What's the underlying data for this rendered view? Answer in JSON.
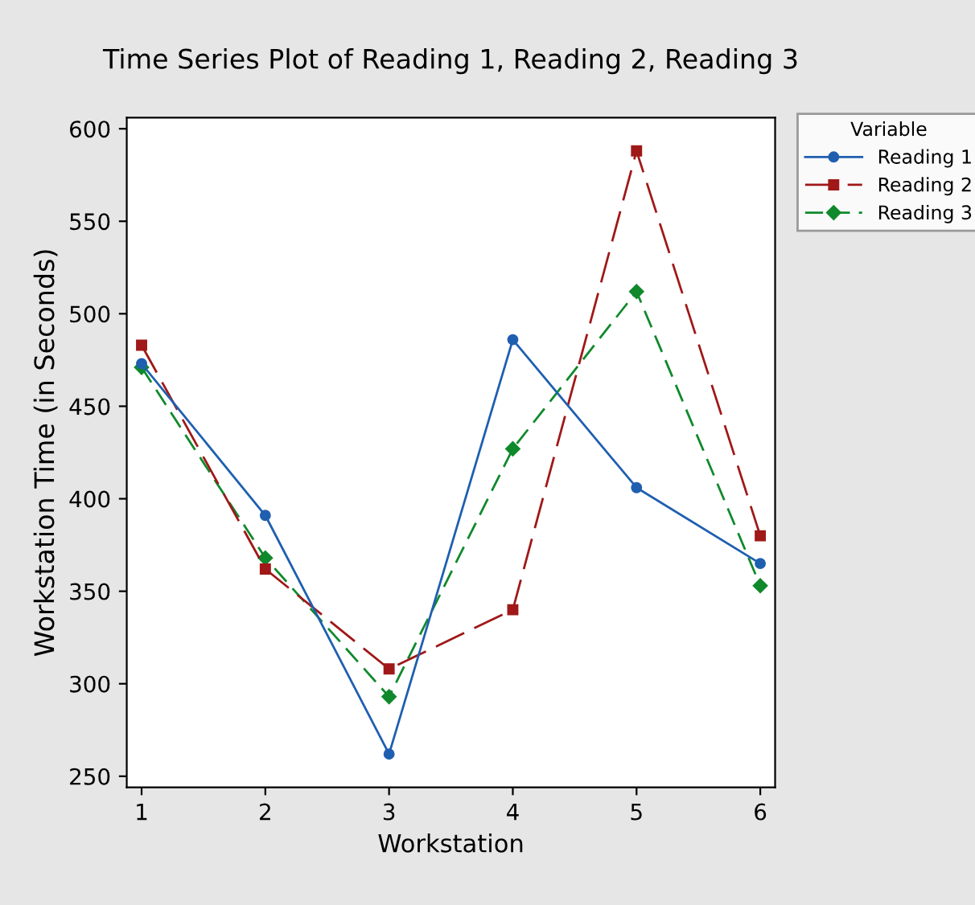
{
  "chart_data": {
    "type": "line",
    "title": "Time Series Plot of Reading 1, Reading 2, Reading 3",
    "xlabel": "Workstation",
    "ylabel": "Workstation Time (in Seconds)",
    "legend_title": "Variable",
    "legend": "top right",
    "x": [
      1,
      2,
      3,
      4,
      5,
      6
    ],
    "xlim": [
      0.88,
      6.12
    ],
    "xticks": [
      1,
      2,
      3,
      4,
      5,
      6
    ],
    "ylim": [
      244,
      606
    ],
    "yticks": [
      250,
      300,
      350,
      400,
      450,
      500,
      550,
      600
    ],
    "grid": false,
    "series": [
      {
        "name": "Reading 1",
        "color": "#1f5fb0",
        "values": [
          473,
          391,
          262,
          486,
          406,
          365
        ],
        "marker": "circle",
        "line_style": "solid"
      },
      {
        "name": "Reading 2",
        "color": "#a01818",
        "values": [
          483,
          362,
          308,
          340,
          588,
          380
        ],
        "marker": "square",
        "line_style": "long dashed"
      },
      {
        "name": "Reading 3",
        "color": "#10892c",
        "values": [
          471,
          368,
          293,
          427,
          512,
          353
        ],
        "marker": "diamond",
        "line_style": "dashed"
      }
    ]
  }
}
